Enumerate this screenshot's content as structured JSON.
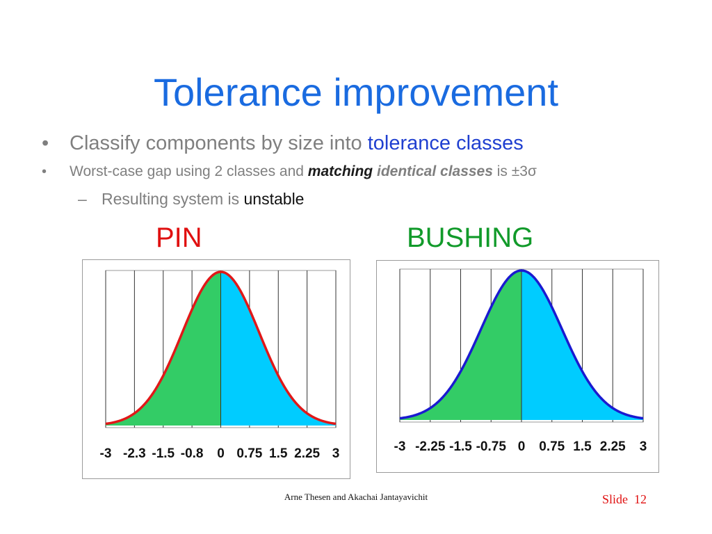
{
  "slide": {
    "title": "Tolerance improvement",
    "bullets": {
      "b1_marker": "•",
      "b1_text": "Classify components by size into ",
      "b1_highlight": "tolerance classes",
      "b2_marker": "•",
      "b2_text": "Worst-case gap using 2 classes and ",
      "b2_bold1": "matching",
      "b2_bold2": "identical classes",
      "b2_text2": " is ",
      "b2_value": "±3σ",
      "b3_marker": "–",
      "b3_text": "Resulting system is ",
      "b3_highlight": "unstable"
    },
    "footer": {
      "author": "Arne Thesen and Akachai Jantayavichit",
      "slide_label": "Slide",
      "slide_number": "12"
    }
  },
  "chart_data": [
    {
      "type": "area",
      "title": "PIN",
      "x_ticks": [
        "-3",
        "-2.3",
        "-1.5",
        "-0.8",
        "0",
        "0.75",
        "1.5",
        "2.25",
        "3"
      ],
      "xlim": [
        -3,
        3
      ],
      "curve": "normal",
      "split_at": 0,
      "colors": {
        "left_fill": "#33cc66",
        "right_fill": "#00ccff",
        "outline": "#e01818"
      }
    },
    {
      "type": "area",
      "title": "BUSHING",
      "x_ticks": [
        "-3",
        "-2.25",
        "-1.5",
        "-0.75",
        "0",
        "0.75",
        "1.5",
        "2.25",
        "3"
      ],
      "xlim": [
        -3,
        3
      ],
      "curve": "normal",
      "split_at": 0,
      "colors": {
        "left_fill": "#33cc66",
        "right_fill": "#00ccff",
        "outline": "#1a1ad0"
      }
    }
  ]
}
